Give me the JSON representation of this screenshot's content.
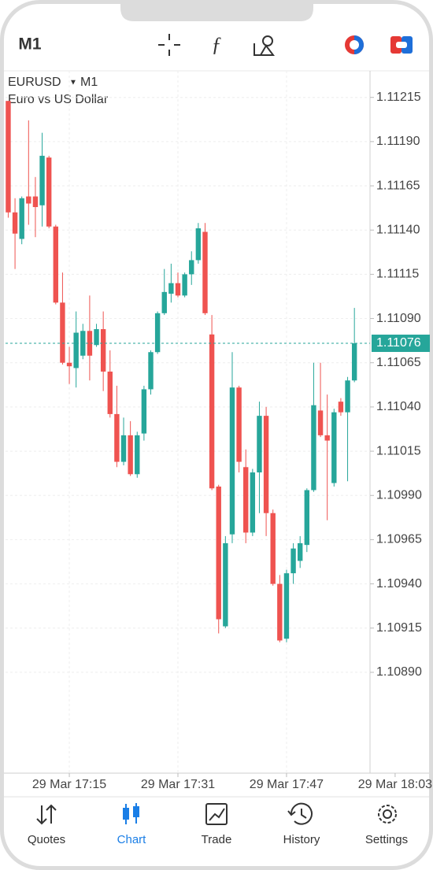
{
  "header": {
    "timeframe": "M1"
  },
  "chart_data": {
    "type": "candlestick",
    "symbol": "EURUSD",
    "timeframe": "M1",
    "subtitle": "Euro vs US Dollar",
    "open": [
      1.11213,
      1.1115,
      1.11135,
      1.11159,
      1.11159,
      1.11154,
      1.11181,
      1.11142,
      1.11099,
      1.11065,
      1.11062,
      1.11069,
      1.11083,
      1.11075,
      1.11084,
      1.1106,
      1.11036,
      1.11009,
      1.11024,
      1.11002,
      1.11025,
      1.1105,
      1.11071,
      1.11093,
      1.11104,
      1.1111,
      1.11103,
      1.11115,
      1.11123,
      1.11139,
      1.11081,
      1.10995,
      1.10916,
      1.10968,
      1.11051,
      1.11006,
      1.10969,
      1.11003,
      1.11035,
      1.1098,
      1.1094,
      1.10909,
      1.10946,
      1.10953,
      1.10962,
      1.10993,
      1.11038,
      1.11024,
      1.10997,
      1.11043,
      1.11037,
      1.11055
    ],
    "high": [
      1.11213,
      1.11158,
      1.11159,
      1.11202,
      1.1117,
      1.11195,
      1.11182,
      1.11143,
      1.11116,
      1.11074,
      1.11094,
      1.11087,
      1.11103,
      1.11087,
      1.11094,
      1.11072,
      1.11052,
      1.11034,
      1.11032,
      1.11026,
      1.11052,
      1.11072,
      1.11094,
      1.11118,
      1.11121,
      1.11116,
      1.11116,
      1.11128,
      1.11144,
      1.11144,
      1.11092,
      1.10996,
      1.10967,
      1.11071,
      1.11052,
      1.11016,
      1.11005,
      1.11043,
      1.1104,
      1.10982,
      1.10945,
      1.10948,
      1.10963,
      1.10967,
      1.10994,
      1.11065,
      1.11065,
      1.11047,
      1.11039,
      1.11045,
      1.11057,
      1.11096
    ],
    "low": [
      1.11147,
      1.11118,
      1.11132,
      1.11143,
      1.11136,
      1.11142,
      1.11141,
      1.11098,
      1.11064,
      1.11053,
      1.11051,
      1.11067,
      1.11055,
      1.11074,
      1.11049,
      1.11034,
      1.11006,
      1.11007,
      1.11001,
      1.11,
      1.11021,
      1.11047,
      1.1107,
      1.11092,
      1.11099,
      1.11102,
      1.11102,
      1.11109,
      1.11121,
      1.11092,
      1.10993,
      1.10912,
      1.10915,
      1.10963,
      1.11003,
      1.10963,
      1.10967,
      1.1098,
      1.10967,
      1.10939,
      1.10907,
      1.10907,
      1.1094,
      1.10949,
      1.10958,
      1.10992,
      1.11023,
      1.10976,
      1.10995,
      1.11035,
      1.10998,
      1.11054
    ],
    "close": [
      1.1115,
      1.11138,
      1.11158,
      1.11155,
      1.11153,
      1.11182,
      1.11142,
      1.11099,
      1.11065,
      1.11063,
      1.11082,
      1.11083,
      1.11069,
      1.11084,
      1.1106,
      1.11036,
      1.11009,
      1.11024,
      1.11002,
      1.11024,
      1.1105,
      1.11071,
      1.11093,
      1.11105,
      1.1111,
      1.11103,
      1.11115,
      1.11123,
      1.11141,
      1.11093,
      1.10994,
      1.1092,
      1.10963,
      1.11051,
      1.11009,
      1.10969,
      1.11003,
      1.11035,
      1.1098,
      1.1094,
      1.10908,
      1.10946,
      1.1096,
      1.10963,
      1.10993,
      1.11041,
      1.11024,
      1.11021,
      1.11037,
      1.11037,
      1.11055,
      1.11076
    ],
    "up_color": "#26a69a",
    "down_color": "#ef5350",
    "current_price": 1.11076,
    "ylim": [
      1.10833,
      1.1123
    ],
    "yticks": [
      1.11215,
      {
        "value": 1.1119,
        "label": "1.11190"
      },
      1.11165,
      {
        "value": 1.1114,
        "label": "1.11140"
      },
      1.11115,
      {
        "value": 1.1109,
        "label": "1.11090"
      },
      1.11065,
      {
        "value": 1.1104,
        "label": "1.11040"
      },
      1.11015,
      {
        "value": 1.1099,
        "label": "1.10990"
      },
      1.10965,
      {
        "value": 1.1094,
        "label": "1.10940"
      },
      1.10915,
      {
        "value": 1.1089,
        "label": "1.10890"
      }
    ],
    "xlim": [
      -0.4,
      53.3
    ],
    "xticks": [
      {
        "value": 9,
        "label": "29 Mar 17:15"
      },
      {
        "value": 25,
        "label": "29 Mar 17:31"
      },
      {
        "value": 41,
        "label": "29 Mar 17:47"
      },
      {
        "value": 57,
        "label": "29 Mar 18:03"
      }
    ],
    "grid": true
  },
  "nav": {
    "items": [
      "Quotes",
      "Chart",
      "Trade",
      "History",
      "Settings"
    ],
    "active": 1
  }
}
